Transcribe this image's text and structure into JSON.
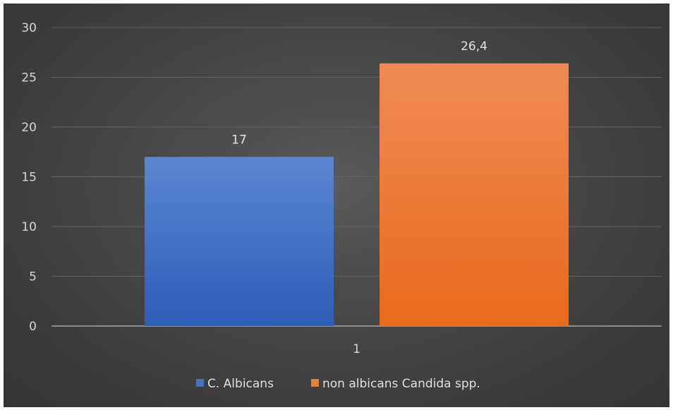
{
  "chart_data": {
    "type": "bar",
    "categories": [
      "1"
    ],
    "series": [
      {
        "name": "C. Albicans",
        "values": [
          17
        ],
        "labels": [
          "17"
        ],
        "color": "#4472c4"
      },
      {
        "name": "non albicans Candida spp.",
        "values": [
          26.4
        ],
        "labels": [
          "26,4"
        ],
        "color": "#ed7d31"
      }
    ],
    "ylim": [
      0,
      30
    ],
    "yticks": [
      0,
      5,
      10,
      15,
      20,
      25,
      30
    ],
    "grid": true,
    "legend_position": "bottom",
    "background": "#444444"
  }
}
